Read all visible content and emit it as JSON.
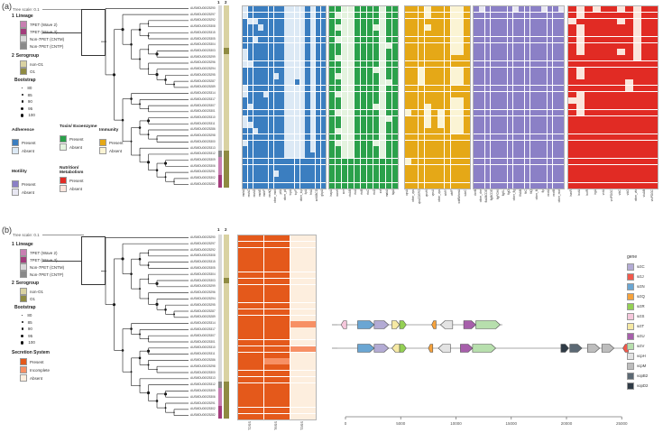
{
  "chart_data": {
    "type": [
      "tree",
      "heatmap",
      "gene-synteny"
    ],
    "isolates": [
      "AUSMDU00025290",
      "AUSMDU00025297",
      "AUSMDU00025292",
      "AUSMDU00025308",
      "AUSMDU00025315",
      "AUSMDU00025305",
      "AUSMDU00025304",
      "AUSMDU00025303",
      "AUSMDU00025299",
      "AUSMDU00025296",
      "AUSMDU00025294",
      "AUSMDU00025295",
      "AUSMDU00025287",
      "AUSMDU00025289",
      "AUSMDU00025314",
      "AUSMDU00025317",
      "AUSMDU00025307",
      "AUSMDU00025301",
      "AUSMDU00025310",
      "AUSMDU00025311",
      "AUSMDU00025286",
      "AUSMDU00025298",
      "AUSMDU00025300",
      "AUSMDU00025313",
      "AUSMDU00025312",
      "AUSMDU00025309",
      "AUSMDU00025306",
      "AUSMDU00025291",
      "AUSMDU00025302",
      "AUSMDU00025282"
    ],
    "colors": {
      "lineage_row": {
        "0": "#d9d9d9",
        "1": "#8a8a8a",
        "2": "#c87fb2",
        "3": "#a33c7c"
      },
      "serogroup_row": {
        "0": "#d9d2a2",
        "1": "#8f8b42"
      },
      "secretion": {
        "2": "#e4591b",
        "1": "#f79065",
        "0": "#fdeede"
      },
      "branch": "#3a3a3a"
    },
    "panel_a": {
      "label": "(a)",
      "tree_scale_label": "Tree scale: 0.1",
      "strip_header_1": "1",
      "strip_header_2": "2",
      "lineage_by_row": "000000000000000000000000122233",
      "serogroup_by_row": "000000010000000000000000111111",
      "legend": {
        "lineage_index": "1",
        "lineage_title": "Lineage",
        "lineage_items": [
          {
            "label": "7PET (Wave 2)",
            "color": "#c87fb2"
          },
          {
            "label": "7PET (Wave 3)",
            "color": "#a33c7c"
          },
          {
            "label": "Non-7PET (CNTM)",
            "color": "#d9d9d9"
          },
          {
            "label": "Non-7PET (CNTP)",
            "color": "#8a8a8a"
          }
        ],
        "serogroup_index": "2",
        "serogroup_title": "Serogroup",
        "serogroup_items": [
          {
            "label": "non-O1",
            "color": "#d9d2a2"
          },
          {
            "label": "O1",
            "color": "#8f8b42"
          }
        ],
        "bootstrap_title": "Bootstrap",
        "bootstrap_items": [
          "80",
          "85",
          "90",
          "95",
          "100"
        ],
        "categories": [
          {
            "title": "Adherence",
            "present_label": "Present",
            "absent_label": "Absent",
            "present": "#3b7ec0",
            "absent": "#dce9f5"
          },
          {
            "title": "Toxin/ Exoenzyme",
            "present_label": "Present",
            "absent_label": "Absent",
            "present": "#2ba14b",
            "absent": "#e4f3df"
          },
          {
            "title": "Immunity",
            "present_label": "Present",
            "absent_label": "Absent",
            "present": "#e5a817",
            "absent": "#fbf4d4"
          },
          {
            "title": "Motility",
            "present_label": "Present",
            "absent_label": "Absent",
            "present": "#8b80c6",
            "absent": "#e9e8f3"
          },
          {
            "title": "Nutrition/ Metabolism",
            "present_label": "Present",
            "absent_label": "Absent",
            "present": "#e12b24",
            "absent": "#fbe5dc"
          }
        ]
      },
      "heatmaps": [
        {
          "name": "adherence",
          "present": "#3b7ec0",
          "absent": "#dce9f5",
          "columns": [
            "mshA",
            "mshC",
            "mshD",
            "mshE",
            "mshF",
            "mshQ",
            "other_msh",
            "pilA",
            "other_pil",
            "tcpA",
            "tcpF",
            "other_tcp",
            "ilpA",
            "frhA",
            "acfABCD",
            "gbpA"
          ],
          "rows": [
            "0111111100001011",
            "0111111100001011",
            "1001111100001011",
            "1110111100001011",
            "1111111100001011",
            "1101111100001011",
            "1111111100001011",
            "0111111100001011",
            "0111111100001011",
            "0011111100001011",
            "1111111100001011",
            "1111110100001011",
            "1111111100101011",
            "0111111100001011",
            "0111011100001011",
            "1111111100001011",
            "1011111100001011",
            "1111111100001011",
            "0111111100001011",
            "0011111100001011",
            "1101111100001011",
            "1111111100001011",
            "0111111100001011",
            "1111111100001011",
            "1111111100001111",
            "1111111111111111",
            "1111111111111111",
            "1111110111111111",
            "1111111111111111",
            "1111111111111111"
          ]
        },
        {
          "name": "toxin-exoenzyme",
          "present": "#2ba14b",
          "absent": "#e4f3df",
          "columns": [
            "hapA",
            "nanH",
            "ace",
            "ctxAB",
            "rtxA",
            "rtxB",
            "rtxC",
            "rtxD",
            "zot",
            "makA",
            "hlyA"
          ],
          "rows": [
            "11001111011",
            "10001111011",
            "11001111011",
            "10001110011",
            "11001111011",
            "10001111011",
            "11001111001",
            "11001111011",
            "10001111011",
            "11001111011",
            "11001110011",
            "10001111011",
            "11001111001",
            "11001111011",
            "10001111011",
            "11001111011",
            "11001110011",
            "10001111011",
            "11001111001",
            "11001111011",
            "10001111011",
            "11001111011",
            "10001110011",
            "11001111011",
            "11001111011",
            "11111111111",
            "11111111111",
            "11111111111",
            "11111111111",
            "11111111111"
          ]
        },
        {
          "name": "immunity",
          "present": "#e5a817",
          "absent": "#fbf4d4",
          "columns": [
            "cqsA",
            "other_vps",
            "vpsCDEFG",
            "vpsHI",
            "vpsU",
            "other_vps",
            "wbfY",
            "wbfF",
            "wbfB/rbmA",
            "wbrC"
          ],
          "rows": [
            "1110111001",
            "1110111001",
            "1111111001",
            "1110111001",
            "1111111001",
            "1111111001",
            "1111111001",
            "1111111001",
            "1111111111",
            "1111111111",
            "1101111001",
            "1101111001",
            "1101111001",
            "1111111111",
            "1111111111",
            "1111111001",
            "1110111001",
            "0110101001",
            "1110101001",
            "1110101001",
            "1111111001",
            "1111111111",
            "1111111111",
            "1111111111",
            "1111111111",
            "0111111111",
            "1111111111",
            "1111111111",
            "1111111111",
            "1111111111"
          ]
        },
        {
          "name": "motility",
          "present": "#8b80c6",
          "absent": "#e9e8f3",
          "columns": [
            "cheB",
            "other_che",
            "flaABCDE",
            "flgBCDE",
            "flgFGHI",
            "flgKL",
            "flgO",
            "other_flg",
            "flhAB",
            "flrC",
            "fliQ",
            "other_fli",
            "flp",
            "motA",
            "motB",
            "other_mot"
          ],
          "rows": [
            "1011111011110110",
            "1111111111111111",
            "1111111111111111",
            "1111111111111111",
            "1111111111111111",
            "1111111111111111",
            "1111111111111111",
            "1111111111111111",
            "1111111111111111",
            "1111111111111111",
            "1111111111111111",
            "1111111111111111",
            "1111111111111111",
            "1111111111111111",
            "1111111111111111",
            "1111111111111111",
            "1111111111111111",
            "1111111111111111",
            "1111111111111111",
            "1111111111111111",
            "1111111111111111",
            "1111111111111111",
            "1111111111111111",
            "1111111111111111",
            "1111111111111111",
            "1111111111111111",
            "1111111111111111",
            "1111111111111111",
            "1111111111111111",
            "1111111111111111"
          ]
        },
        {
          "name": "nutrition-metabolism",
          "present": "#e12b24",
          "absent": "#fbe5dc",
          "columns": [
            "hasR",
            "hutA",
            "hutR",
            "irgA",
            "vctA",
            "vctPDGC",
            "vibC",
            "vibD",
            "other_vib",
            "viuAB",
            "viuPDGC"
          ],
          "rows": [
            "10101101011",
            "10111111011",
            "01111101011",
            "10111111011",
            "10111111011",
            "10111111011",
            "10111111011",
            "10111101011",
            "11111111011",
            "11111111111",
            "10111111111",
            "10111111111",
            "11111110111",
            "11111110111",
            "10111111111",
            "00111111111",
            "10111111111",
            "10111111111",
            "11111111111",
            "11111111111",
            "11111111111",
            "11111111111",
            "11111111111",
            "11111111111",
            "11111111111",
            "11111111111",
            "11111111111",
            "11111111111",
            "11111111111",
            "11111111111"
          ]
        }
      ]
    },
    "panel_b": {
      "label": "(b)",
      "tree_scale_label": "Tree scale: 0.1",
      "strip_header_1": "1",
      "strip_header_2": "2",
      "lineage_by_row": "000000000000000000000000122233",
      "serogroup_by_row": "000000010000000000000000111111",
      "legend": {
        "lineage_index": "1",
        "lineage_title": "Lineage",
        "lineage_items": [
          {
            "label": "7PET (Wave 2)",
            "color": "#c87fb2"
          },
          {
            "label": "7PET (Wave 3)",
            "color": "#a33c7c"
          },
          {
            "label": "Non-7PET (CNTM)",
            "color": "#d9d9d9"
          },
          {
            "label": "Non-7PET (CNTP)",
            "color": "#8a8a8a"
          }
        ],
        "serogroup_index": "2",
        "serogroup_title": "Serogroup",
        "serogroup_items": [
          {
            "label": "non-O1",
            "color": "#d9d2a2"
          },
          {
            "label": "O1",
            "color": "#8f8b42"
          }
        ],
        "bootstrap_title": "Bootstrap",
        "bootstrap_items": [
          "80",
          "85",
          "90",
          "95",
          "100"
        ],
        "secretion_title": "Secretion System",
        "secretion_items": [
          {
            "label": "Present",
            "color": "#e4591b"
          },
          {
            "label": "Incomplete",
            "color": "#f79065"
          },
          {
            "label": "Absent",
            "color": "#fdeede"
          }
        ]
      },
      "secretion": {
        "columns": [
          "T2SS",
          "T6SS",
          "T3SS"
        ],
        "rows": [
          "220",
          "220",
          "220",
          "220",
          "220",
          "220",
          "220",
          "220",
          "220",
          "220",
          "220",
          "220",
          "220",
          "220",
          "221",
          "220",
          "220",
          "220",
          "221",
          "220",
          "210",
          "220",
          "220",
          "220",
          "220",
          "220",
          "220",
          "220",
          "220",
          "220"
        ]
      },
      "synteny": {
        "legend_title": "gene",
        "genes": [
          {
            "name": "sctC",
            "color": "#b3abd4"
          },
          {
            "name": "sctJ",
            "color": "#f2594b"
          },
          {
            "name": "sctN",
            "color": "#6aa6d3"
          },
          {
            "name": "sctQ",
            "color": "#f6a23c"
          },
          {
            "name": "sctR",
            "color": "#94d054"
          },
          {
            "name": "sctS",
            "color": "#f6c8dc"
          },
          {
            "name": "sctT",
            "color": "#f6e9a4"
          },
          {
            "name": "sctU",
            "color": "#a75fab"
          },
          {
            "name": "sctV",
            "color": "#b7dfad"
          },
          {
            "name": "vcpH",
            "color": "#e3e3e3"
          },
          {
            "name": "vcpM",
            "color": "#bdbdbd"
          },
          {
            "name": "vopB2",
            "color": "#5c6974"
          },
          {
            "name": "vopD2",
            "color": "#2f3b46"
          }
        ],
        "axis_ticks": [
          "0",
          "5000",
          "10000",
          "15000",
          "20000",
          "25000"
        ],
        "tracks": [
          {
            "end": 14200,
            "genes": [
              {
                "g": "sctS",
                "s": -400,
                "e": 100,
                "d": -1
              },
              {
                "g": "sctN",
                "s": 1100,
                "e": 2600,
                "d": 1
              },
              {
                "g": "sctC",
                "s": 2600,
                "e": 3900,
                "d": 1
              },
              {
                "g": "sctT",
                "s": 4200,
                "e": 4900,
                "d": 1
              },
              {
                "g": "sctR",
                "s": 4900,
                "e": 5500,
                "d": 1
              },
              {
                "g": "sctQ",
                "s": 7800,
                "e": 8200,
                "d": -1
              },
              {
                "g": "vcpH",
                "s": 8600,
                "e": 9700,
                "d": -1
              },
              {
                "g": "sctU",
                "s": 10700,
                "e": 11800,
                "d": 1
              },
              {
                "g": "sctV",
                "s": 11800,
                "e": 14000,
                "d": 1
              }
            ]
          },
          {
            "end": 25700,
            "genes": [
              {
                "g": "sctN",
                "s": 1100,
                "e": 2600,
                "d": 1
              },
              {
                "g": "sctC",
                "s": 2600,
                "e": 3900,
                "d": 1
              },
              {
                "g": "sctT",
                "s": 4200,
                "e": 4900,
                "d": -1
              },
              {
                "g": "sctR",
                "s": 4900,
                "e": 5500,
                "d": 1
              },
              {
                "g": "sctQ",
                "s": 7500,
                "e": 7900,
                "d": -1
              },
              {
                "g": "vcpH",
                "s": 8400,
                "e": 9500,
                "d": -1
              },
              {
                "g": "sctU",
                "s": 10400,
                "e": 11500,
                "d": 1
              },
              {
                "g": "sctV",
                "s": 11500,
                "e": 13600,
                "d": 1
              },
              {
                "g": "vopD2",
                "s": 19500,
                "e": 20200,
                "d": 1
              },
              {
                "g": "vopB2",
                "s": 20300,
                "e": 21400,
                "d": 1
              },
              {
                "g": "vcpM",
                "s": 21900,
                "e": 23000,
                "d": 1
              },
              {
                "g": "vcpM",
                "s": 23200,
                "e": 24300,
                "d": 1
              },
              {
                "g": "sctJ",
                "s": 25100,
                "e": 25600,
                "d": -1
              }
            ]
          }
        ]
      }
    }
  }
}
